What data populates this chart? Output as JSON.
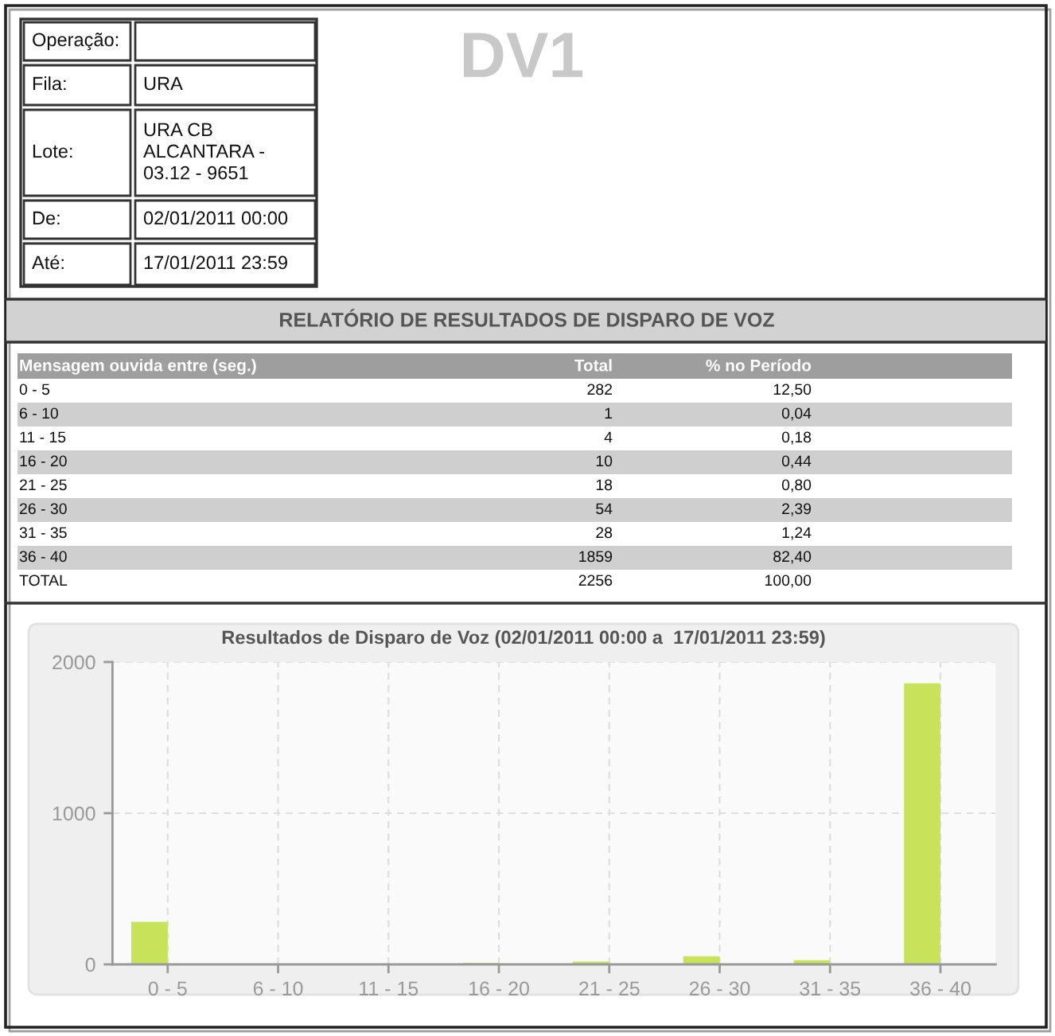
{
  "chart_data": [
    {
      "type": "other",
      "title": "DV1",
      "annotations": [
        "Operação:",
        "Fila:",
        "URA",
        "Lote:",
        "URA CB\nALCANTARA -\n03.12 - 9651",
        "De:",
        "02/01/2011 00:00",
        "Até:",
        "17/01/2011 23:59"
      ]
    },
    {
      "type": "other",
      "title": "RELATÓRIO DE RESULTADOS DE DISPARO DE VOZ",
      "annotations": [
        "Mensagem ouvida entre (seg.)",
        "Total",
        "% no Período",
        "0 - 5",
        "282",
        "12,50",
        "6 - 10",
        "1",
        "0,04",
        "11 - 15",
        "4",
        "0,18",
        "16 - 20",
        "10",
        "0,44",
        "21 - 25",
        "18",
        "0,80",
        "26 - 30",
        "54",
        "2,39",
        "31 - 35",
        "28",
        "1,24",
        "36 - 40",
        "1859",
        "82,40",
        "TOTAL",
        "2256",
        "100,00"
      ]
    },
    {
      "type": "bar",
      "title": "Resultados de Disparo de Voz (02/01/2011 00:00 a  17/01/2011 23:59)",
      "categories": [
        "0 - 5",
        "6 - 10",
        "11 - 15",
        "16 - 20",
        "21 - 25",
        "26 - 30",
        "31 - 35",
        "36 - 40"
      ],
      "values": [
        282,
        1,
        4,
        10,
        18,
        54,
        28,
        1859
      ],
      "color": "#c8e35a",
      "ylim": [
        0,
        2000
      ],
      "yticks": [
        0,
        1000,
        2000
      ],
      "grid": true
    }
  ]
}
